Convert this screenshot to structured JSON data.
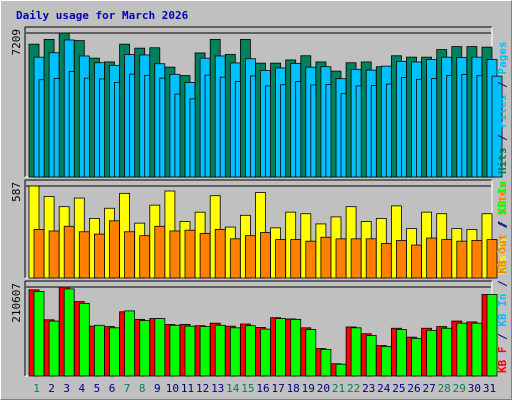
{
  "title": "Daily usage for March 2026",
  "colors": {
    "title": "#0000c0",
    "background": "#c0c0c0",
    "plot_border": "#000000",
    "hits": "#00805c",
    "files": "#00c0ff",
    "pages": "#00c0ff",
    "visits": "#ffff00",
    "sites": "#ff8000",
    "kb_in": "#00ff00",
    "kb_out": "#00c0ff",
    "kb_f": "#ff0000",
    "weekday_label": "#000080",
    "weekend_label": "#00805c"
  },
  "chart_data": [
    {
      "type": "bar",
      "panel": "top",
      "categories": [
        "1",
        "2",
        "3",
        "4",
        "5",
        "6",
        "7",
        "8",
        "9",
        "10",
        "11",
        "12",
        "13",
        "14",
        "15",
        "16",
        "17",
        "18",
        "19",
        "20",
        "21",
        "22",
        "23",
        "24",
        "25",
        "26",
        "27",
        "28",
        "29",
        "30",
        "31"
      ],
      "weekend_days": [
        "1",
        "7",
        "8",
        "14",
        "15",
        "21",
        "22",
        "28",
        "29"
      ],
      "y_tick_label": "7209",
      "ylim": [
        0,
        7209
      ],
      "legend_labels": [
        {
          "text": "Hits",
          "color_key": "hits"
        },
        {
          "text": " / ",
          "color_key": "weekday_label"
        },
        {
          "text": "Files",
          "color_key": "files"
        },
        {
          "text": " / ",
          "color_key": "weekday_label"
        },
        {
          "text": "Pages",
          "color_key": "pages"
        }
      ],
      "series": [
        {
          "name": "Hits",
          "color_key": "hits",
          "values": [
            6650,
            6890,
            7209,
            6830,
            5950,
            5760,
            6650,
            6450,
            6470,
            5500,
            5080,
            6210,
            6890,
            6140,
            6890,
            5700,
            5700,
            5860,
            6070,
            5760,
            5300,
            5720,
            5760,
            5520,
            6070,
            6000,
            6000,
            6380,
            6530,
            6530,
            6500
          ]
        },
        {
          "name": "Files",
          "color_key": "files",
          "values": [
            6000,
            6220,
            6860,
            6060,
            5720,
            5590,
            6130,
            6110,
            5670,
            5140,
            4730,
            5950,
            6060,
            5710,
            5920,
            5330,
            5460,
            5680,
            5500,
            5520,
            4920,
            5390,
            5350,
            5550,
            5790,
            5760,
            5880,
            6000,
            5980,
            6000,
            5880
          ]
        },
        {
          "name": "Pages",
          "color_key": "pages",
          "values": [
            4870,
            4930,
            5280,
            4950,
            4910,
            4730,
            5150,
            5090,
            4950,
            4150,
            3910,
            5100,
            5000,
            4780,
            5060,
            4560,
            4620,
            4780,
            4610,
            4630,
            4170,
            4560,
            4580,
            4650,
            4980,
            4890,
            4930,
            5090,
            5130,
            5070,
            5050
          ]
        }
      ]
    },
    {
      "type": "bar",
      "panel": "middle",
      "categories": [
        "1",
        "2",
        "3",
        "4",
        "5",
        "6",
        "7",
        "8",
        "9",
        "10",
        "11",
        "12",
        "13",
        "14",
        "15",
        "16",
        "17",
        "18",
        "19",
        "20",
        "21",
        "22",
        "23",
        "24",
        "25",
        "26",
        "27",
        "28",
        "29",
        "30",
        "31"
      ],
      "y_tick_label": "587",
      "ylim": [
        0,
        587
      ],
      "legend_labels": [
        {
          "text": "Visits",
          "color_key": "visits"
        },
        {
          "text": " / ",
          "color_key": "weekday_label"
        },
        {
          "text": "Sites",
          "color_key": "sites"
        }
      ],
      "series": [
        {
          "name": "Visits",
          "color_key": "visits",
          "values": [
            587,
            520,
            455,
            510,
            380,
            445,
            540,
            350,
            465,
            555,
            360,
            420,
            525,
            325,
            400,
            545,
            320,
            420,
            410,
            345,
            390,
            455,
            360,
            380,
            460,
            315,
            420,
            410,
            315,
            310,
            410
          ]
        },
        {
          "name": "Sites",
          "color_key": "sites",
          "values": [
            310,
            300,
            330,
            295,
            280,
            365,
            295,
            270,
            330,
            300,
            305,
            285,
            310,
            250,
            270,
            290,
            245,
            245,
            235,
            260,
            250,
            250,
            250,
            220,
            240,
            210,
            255,
            245,
            235,
            240,
            245
          ]
        }
      ]
    },
    {
      "type": "bar",
      "panel": "bottom",
      "categories": [
        "1",
        "2",
        "3",
        "4",
        "5",
        "6",
        "7",
        "8",
        "9",
        "10",
        "11",
        "12",
        "13",
        "14",
        "15",
        "16",
        "17",
        "18",
        "19",
        "20",
        "21",
        "22",
        "23",
        "24",
        "25",
        "26",
        "27",
        "28",
        "29",
        "30",
        "31"
      ],
      "y_tick_label": "210607",
      "ylim": [
        0,
        210607
      ],
      "legend_labels": [
        {
          "text": "KB F",
          "color_key": "kb_f"
        },
        {
          "text": " / ",
          "color_key": "weekday_label"
        },
        {
          "text": "KB In",
          "color_key": "kb_out"
        },
        {
          "text": " / ",
          "color_key": "weekday_label"
        },
        {
          "text": "KB Out",
          "color_key": "sites"
        },
        {
          "text": " / ",
          "color_key": "weekday_label"
        },
        {
          "text": "KB In",
          "color_key": "kb_in"
        }
      ],
      "series": [
        {
          "name": "KB F",
          "color_key": "kb_f",
          "values": [
            204000,
            133000,
            210607,
            176000,
            118000,
            117000,
            152000,
            134000,
            136000,
            122000,
            122000,
            119000,
            125000,
            118000,
            123000,
            115000,
            138000,
            135000,
            114000,
            65000,
            29000,
            116000,
            100000,
            72000,
            113000,
            92000,
            113000,
            117000,
            130000,
            128000,
            193000
          ]
        },
        {
          "name": "KB In",
          "color_key": "kb_in",
          "values": [
            200000,
            130000,
            206000,
            172000,
            120000,
            114000,
            154000,
            131000,
            136000,
            120000,
            118000,
            117000,
            120000,
            114000,
            119000,
            111000,
            136000,
            134000,
            110000,
            63000,
            28000,
            114000,
            96000,
            70000,
            110000,
            89000,
            108000,
            113000,
            125000,
            125000,
            193000
          ]
        }
      ]
    }
  ]
}
